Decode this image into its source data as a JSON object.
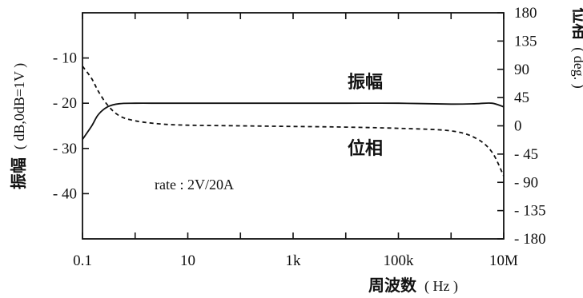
{
  "chart_data": {
    "type": "line",
    "x_scale": "log",
    "x_range": [
      "0.1",
      "10M"
    ],
    "x": [
      0.1,
      0.15,
      0.2,
      0.3,
      0.5,
      1,
      3,
      10,
      100,
      1000,
      10000,
      100000,
      1000000,
      3000000,
      6000000,
      10000000
    ],
    "xlabel": "周波数",
    "xlabel_unit": "( Hz )",
    "x_ticks": [
      "0.1",
      "10",
      "1k",
      "100k",
      "10M"
    ],
    "left_axis": {
      "label": "振幅",
      "unit": "( dB,0dB=1V )",
      "range": [
        -50,
        0
      ],
      "ticks": [
        "- 10",
        "- 20",
        "- 30",
        "- 40"
      ]
    },
    "right_axis": {
      "label": "位相",
      "unit": "( deg. )",
      "range": [
        -180,
        180
      ],
      "ticks": [
        "180",
        "135",
        "90",
        "45",
        "0",
        "- 45",
        "- 90",
        "- 135",
        "- 180"
      ]
    },
    "series": [
      {
        "name": "振幅",
        "axis": "left",
        "style": "solid",
        "values": [
          -28,
          -25,
          -22.5,
          -20.8,
          -20.1,
          -20,
          -20,
          -20,
          -20,
          -20,
          -20,
          -20,
          -20.2,
          -20.1,
          -20,
          -20.8
        ]
      },
      {
        "name": "位相",
        "axis": "right",
        "style": "dashed",
        "values": [
          95,
          75,
          55,
          33,
          16,
          8,
          3,
          1,
          0,
          -1,
          -2,
          -4,
          -8,
          -20,
          -42,
          -80
        ]
      }
    ],
    "annotations": [
      "rate : 2V/20A"
    ],
    "grid": false
  }
}
